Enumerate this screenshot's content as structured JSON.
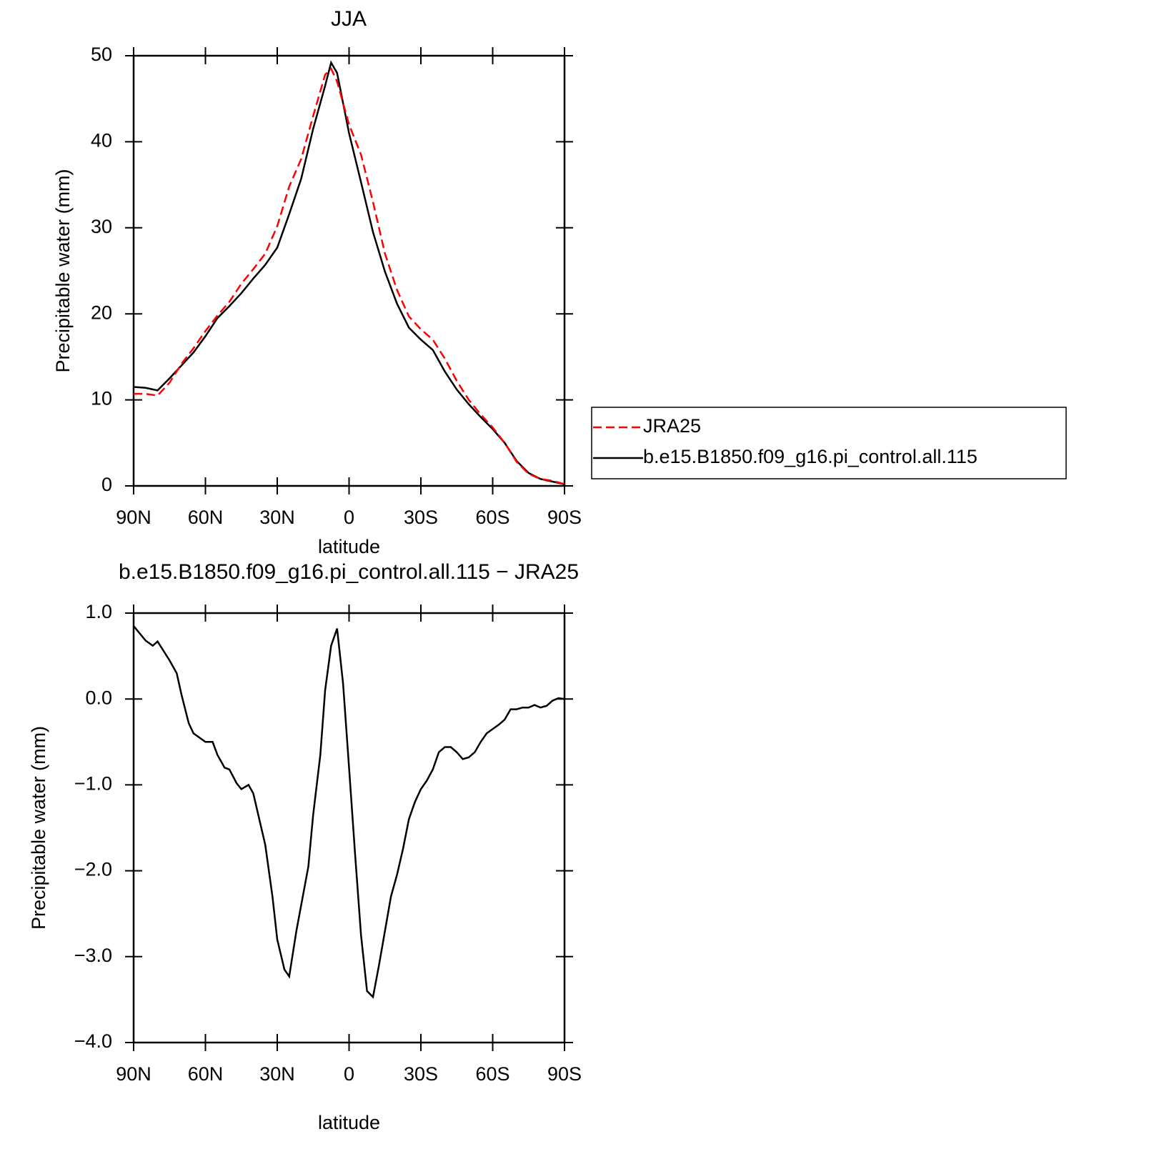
{
  "chart_data": [
    {
      "type": "line",
      "title": "JJA",
      "xlabel": "latitude",
      "ylabel": "Precipitable water (mm)",
      "x": [
        90,
        85,
        80,
        75,
        70,
        65,
        60,
        55,
        50,
        45,
        40,
        35,
        30,
        25,
        20,
        15,
        10,
        7.5,
        5,
        0,
        -5,
        -10,
        -15,
        -20,
        -25,
        -30,
        -35,
        -40,
        -45,
        -50,
        -55,
        -60,
        -65,
        -70,
        -75,
        -80,
        -85,
        -90
      ],
      "series": [
        {
          "name": "JRA25",
          "color": "#ff0000",
          "linestyle": "dashed",
          "values": [
            10.7,
            10.7,
            10.5,
            12.0,
            14.2,
            16.0,
            18.0,
            19.8,
            21.4,
            23.5,
            25.2,
            27.0,
            30.2,
            34.8,
            38.0,
            43.0,
            47.8,
            48.5,
            47.0,
            42.0,
            38.5,
            33.0,
            27.0,
            22.8,
            19.7,
            18.2,
            17.0,
            14.8,
            12.2,
            10.0,
            8.3,
            6.8,
            5.0,
            2.8,
            1.4,
            0.8,
            0.6,
            0.2
          ]
        },
        {
          "name": "b.e15.B1850.f09_g16.pi_control.all.115",
          "color": "#000000",
          "linestyle": "solid",
          "values": [
            11.5,
            11.4,
            11.1,
            12.5,
            14.0,
            15.5,
            17.4,
            19.5,
            20.9,
            22.4,
            24.1,
            25.7,
            27.7,
            31.6,
            35.7,
            41.5,
            46.5,
            49.2,
            48.0,
            41.0,
            35.3,
            29.5,
            24.9,
            21.2,
            18.4,
            17.0,
            15.8,
            13.3,
            11.2,
            9.5,
            8.0,
            6.6,
            5.0,
            2.9,
            1.5,
            0.8,
            0.5,
            0.2
          ]
        }
      ],
      "xlim": [
        90,
        -90
      ],
      "xticks": [
        {
          "value": 90,
          "label": "90N"
        },
        {
          "value": 60,
          "label": "60N"
        },
        {
          "value": 30,
          "label": "30N"
        },
        0,
        {
          "value": -30,
          "label": "30S"
        },
        {
          "value": -60,
          "label": "60S"
        },
        {
          "value": -90,
          "label": "90S"
        }
      ],
      "ylim": [
        0,
        50
      ],
      "yticks": [
        0,
        10,
        20,
        30,
        40,
        50
      ],
      "legend": "right"
    },
    {
      "type": "line",
      "title": "b.e15.B1850.f09_g16.pi_control.all.115 − JRA25",
      "xlabel": "latitude",
      "ylabel": "Precipitable water (mm)",
      "x": [
        90,
        85,
        82,
        80,
        75,
        72,
        70,
        67,
        65,
        60,
        57,
        55,
        52,
        50,
        47,
        45,
        42,
        40,
        35,
        32,
        30,
        27,
        25,
        22,
        20,
        17,
        15,
        12,
        10,
        7.5,
        5,
        2.5,
        0,
        -2.5,
        -5,
        -7.5,
        -10,
        -12.5,
        -15,
        -17.5,
        -20,
        -22.5,
        -25,
        -27.5,
        -30,
        -32.5,
        -35,
        -37.5,
        -40,
        -42.5,
        -45,
        -47.5,
        -50,
        -52.5,
        -55,
        -57.5,
        -60,
        -62.5,
        -65,
        -67.5,
        -70,
        -72.5,
        -75,
        -77.5,
        -80,
        -82.5,
        -85,
        -87.5,
        -90
      ],
      "color": "#000000",
      "values": [
        0.85,
        0.68,
        0.62,
        0.67,
        0.45,
        0.3,
        0.05,
        -0.28,
        -0.4,
        -0.5,
        -0.5,
        -0.65,
        -0.8,
        -0.82,
        -0.98,
        -1.05,
        -1.0,
        -1.1,
        -1.7,
        -2.3,
        -2.8,
        -3.15,
        -3.23,
        -2.7,
        -2.4,
        -1.95,
        -1.35,
        -0.65,
        0.1,
        0.62,
        0.82,
        0.18,
        -0.8,
        -1.8,
        -2.75,
        -3.4,
        -3.47,
        -3.1,
        -2.7,
        -2.3,
        -2.05,
        -1.75,
        -1.4,
        -1.2,
        -1.05,
        -0.95,
        -0.82,
        -0.62,
        -0.56,
        -0.56,
        -0.62,
        -0.7,
        -0.68,
        -0.62,
        -0.5,
        -0.4,
        -0.35,
        -0.3,
        -0.24,
        -0.12,
        -0.12,
        -0.1,
        -0.1,
        -0.07,
        -0.1,
        -0.08,
        -0.02,
        0.01,
        0
      ],
      "xlim": [
        90,
        -90
      ],
      "xticks": [
        {
          "value": 90,
          "label": "90N"
        },
        {
          "value": 60,
          "label": "60N"
        },
        {
          "value": 30,
          "label": "30N"
        },
        0,
        {
          "value": -30,
          "label": "30S"
        },
        {
          "value": -60,
          "label": "60S"
        },
        {
          "value": -90,
          "label": "90S"
        }
      ],
      "ylim": [
        -4,
        1
      ],
      "yticks": [
        {
          "value": -4,
          "label": "−4.0"
        },
        {
          "value": -3,
          "label": "−3.0"
        },
        {
          "value": -2,
          "label": "−2.0"
        },
        {
          "value": -1,
          "label": "−1.0"
        },
        {
          "value": 0,
          "label": "0.0"
        },
        {
          "value": 1,
          "label": "1.0"
        }
      ]
    }
  ]
}
